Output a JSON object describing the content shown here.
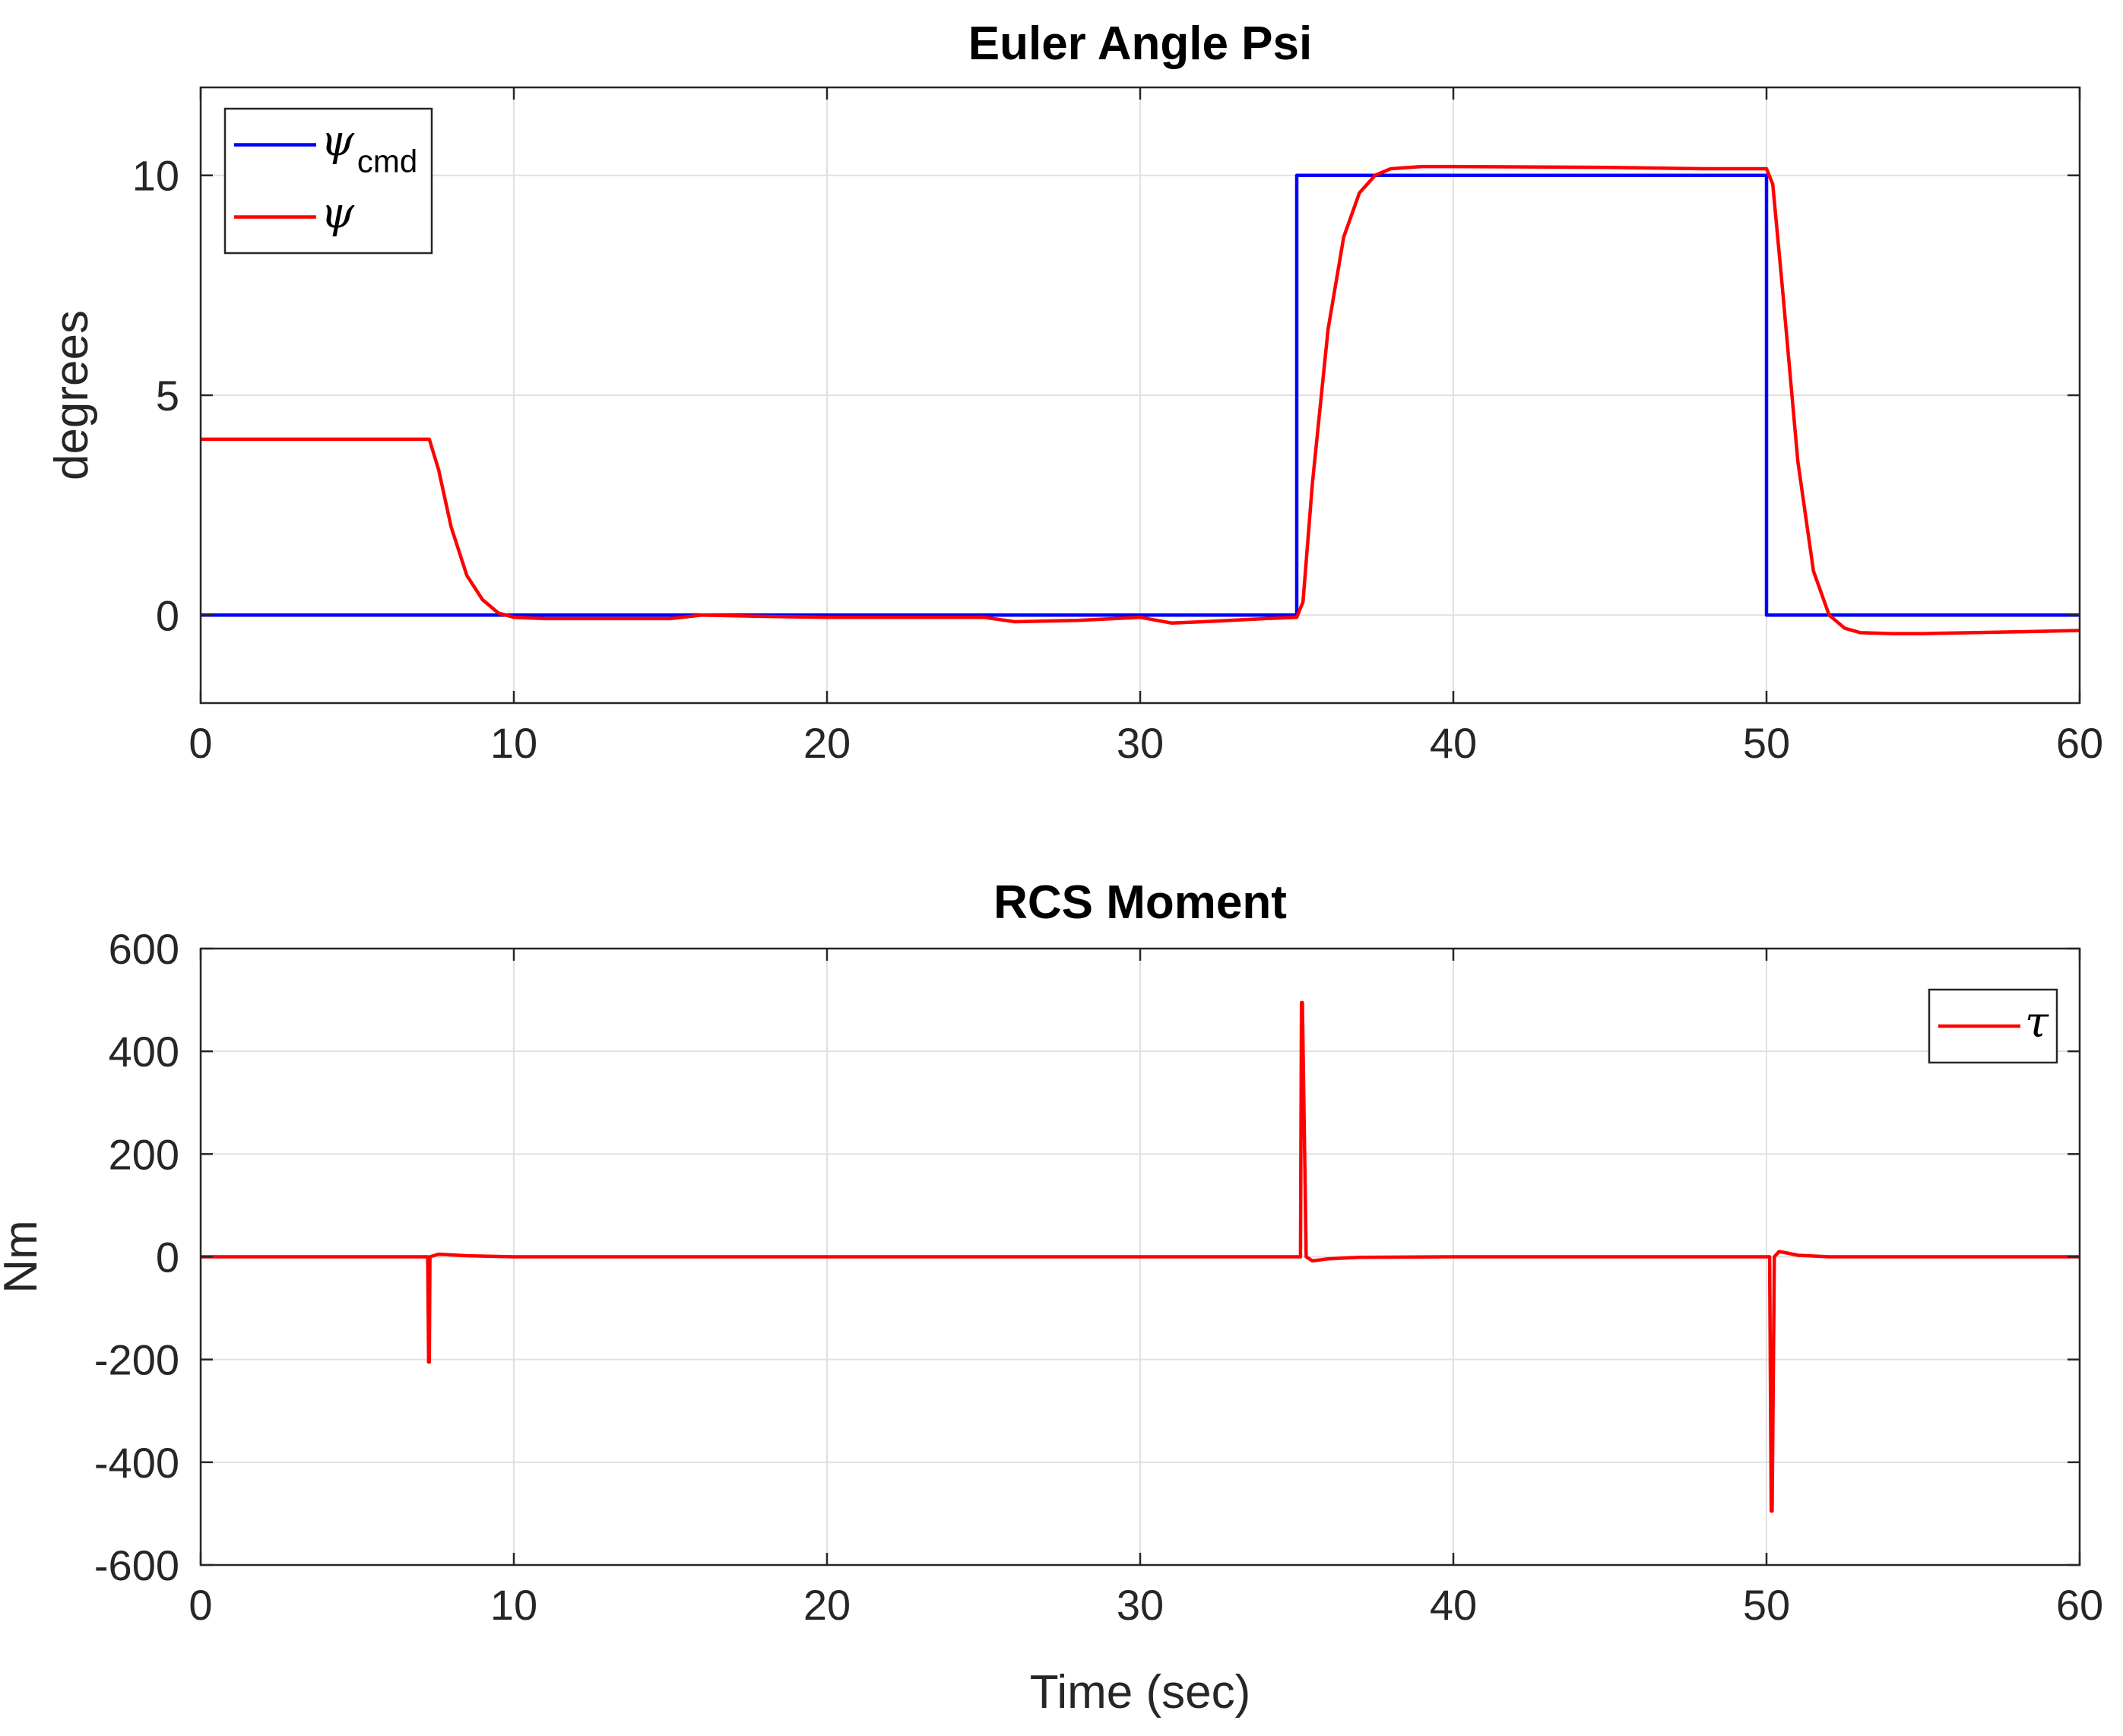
{
  "chart_data": [
    {
      "type": "line",
      "title": "Euler Angle Psi",
      "xlabel": "",
      "ylabel": "degrees",
      "xlim": [
        0,
        60
      ],
      "ylim": [
        -2,
        12
      ],
      "xticks": [
        0,
        10,
        20,
        30,
        40,
        50,
        60
      ],
      "yticks": [
        0,
        5,
        10
      ],
      "grid": true,
      "legend": "top-left",
      "series": [
        {
          "name": "ψcmd",
          "legend_main": "ψ",
          "legend_sub": "cmd",
          "color": "#0000ff",
          "x": [
            0,
            35,
            35,
            50,
            50,
            60
          ],
          "y": [
            0,
            0,
            10,
            10,
            0,
            0
          ]
        },
        {
          "name": "ψ",
          "legend_main": "ψ",
          "legend_sub": "",
          "color": "#ff0000",
          "x": [
            0,
            7.3,
            7.6,
            8.0,
            8.5,
            9.0,
            9.5,
            10,
            11,
            12,
            14,
            15,
            16,
            18,
            20,
            22,
            25,
            26,
            28,
            30,
            31,
            32,
            34,
            35,
            35.2,
            35.5,
            36,
            36.5,
            37,
            37.5,
            38,
            39,
            40,
            45,
            48,
            50,
            50.2,
            50.5,
            51,
            51.5,
            52,
            52.5,
            53,
            54,
            55,
            58,
            60
          ],
          "y": [
            4,
            4,
            3.3,
            2.0,
            0.9,
            0.35,
            0.05,
            -0.05,
            -0.08,
            -0.08,
            -0.08,
            -0.08,
            0,
            -0.03,
            -0.05,
            -0.05,
            -0.05,
            -0.15,
            -0.12,
            -0.05,
            -0.18,
            -0.15,
            -0.08,
            -0.05,
            0.3,
            3.0,
            6.5,
            8.6,
            9.6,
            10.0,
            10.15,
            10.2,
            10.2,
            10.18,
            10.15,
            10.15,
            9.8,
            7.5,
            3.5,
            1.0,
            0.0,
            -0.3,
            -0.4,
            -0.42,
            -0.42,
            -0.38,
            -0.35
          ]
        }
      ]
    },
    {
      "type": "line",
      "title": "RCS Moment",
      "xlabel": "Time (sec)",
      "ylabel": "Nm",
      "xlim": [
        0,
        60
      ],
      "ylim": [
        -600,
        600
      ],
      "xticks": [
        0,
        10,
        20,
        30,
        40,
        50,
        60
      ],
      "yticks": [
        -600,
        -400,
        -200,
        0,
        200,
        400,
        600
      ],
      "grid": true,
      "legend": "top-right",
      "series": [
        {
          "name": "τ",
          "legend_main": "τ",
          "legend_sub": "",
          "color": "#ff0000",
          "x": [
            0,
            7.25,
            7.28,
            7.3,
            7.32,
            7.6,
            8.5,
            10,
            35.0,
            35.12,
            35.15,
            35.18,
            35.3,
            35.5,
            36,
            37,
            40,
            50.1,
            50.15,
            50.18,
            50.25,
            50.4,
            50.6,
            51,
            52,
            60
          ],
          "y": [
            0,
            0,
            -205,
            -205,
            0,
            5,
            2,
            0,
            0,
            0,
            495,
            495,
            0,
            -8,
            -4,
            -1,
            0,
            0,
            -495,
            -495,
            0,
            10,
            8,
            3,
            0,
            0
          ]
        }
      ]
    }
  ]
}
